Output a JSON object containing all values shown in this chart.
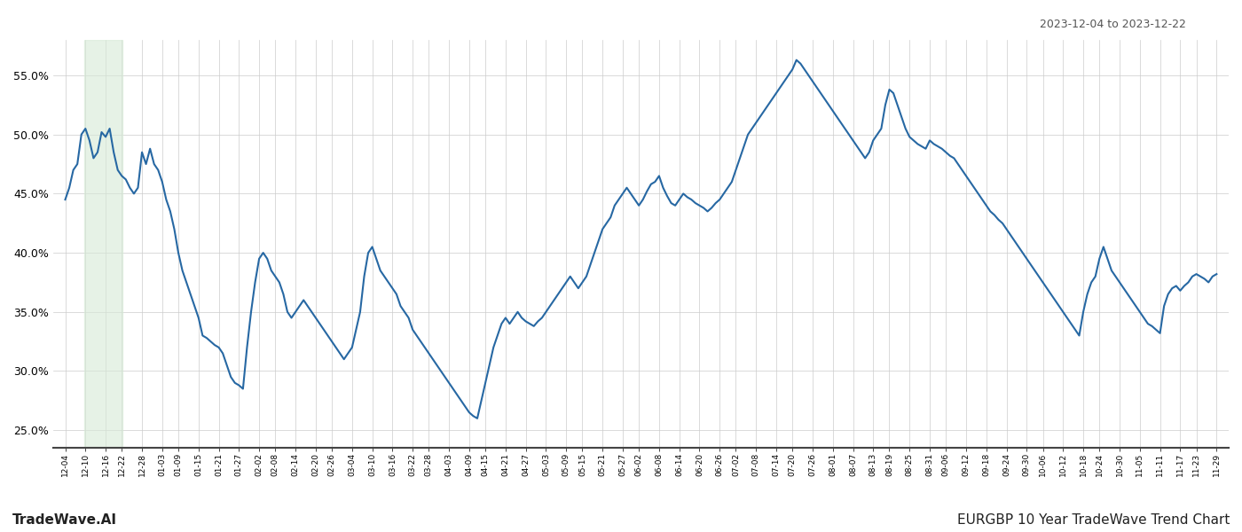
{
  "title_date_range": "2023-12-04 to 2023-12-22",
  "footer_left": "TradeWave.AI",
  "footer_right": "EURGBP 10 Year TradeWave Trend Chart",
  "line_color": "#2768a3",
  "line_width": 1.5,
  "background_color": "#ffffff",
  "grid_color": "#cccccc",
  "highlight_color": "#d6ead6",
  "highlight_alpha": 0.6,
  "ylim": [
    23.5,
    58.0
  ],
  "yticks": [
    25.0,
    30.0,
    35.0,
    40.0,
    45.0,
    50.0,
    55.0
  ],
  "x_labels": [
    "12-04",
    "12-10",
    "12-16",
    "12-22",
    "12-28",
    "01-03",
    "01-09",
    "01-15",
    "01-21",
    "01-27",
    "02-02",
    "02-08",
    "02-14",
    "02-20",
    "02-26",
    "03-04",
    "03-10",
    "03-16",
    "03-22",
    "03-28",
    "04-03",
    "04-09",
    "04-15",
    "04-21",
    "04-27",
    "05-03",
    "05-09",
    "05-15",
    "05-21",
    "05-27",
    "06-02",
    "06-08",
    "06-14",
    "06-20",
    "06-26",
    "07-02",
    "07-08",
    "07-14",
    "07-20",
    "07-26",
    "08-01",
    "08-07",
    "08-13",
    "08-19",
    "08-25",
    "08-31",
    "09-06",
    "09-12",
    "09-18",
    "09-24",
    "09-30",
    "10-06",
    "10-12",
    "10-18",
    "10-24",
    "10-30",
    "11-05",
    "11-11",
    "11-17",
    "11-23",
    "11-29"
  ],
  "highlight_label_start": "12-10",
  "highlight_label_end": "12-22",
  "values": [
    44.5,
    45.5,
    47.0,
    47.5,
    50.0,
    50.5,
    49.5,
    48.0,
    48.5,
    50.2,
    49.8,
    50.5,
    48.5,
    47.0,
    46.5,
    46.2,
    45.5,
    45.0,
    45.5,
    48.5,
    47.5,
    48.8,
    47.5,
    47.0,
    46.0,
    44.5,
    43.5,
    42.0,
    40.0,
    38.5,
    37.5,
    36.5,
    35.5,
    34.5,
    33.0,
    32.8,
    32.5,
    32.2,
    32.0,
    31.5,
    30.5,
    29.5,
    29.0,
    28.8,
    28.5,
    32.0,
    35.0,
    37.5,
    39.5,
    40.0,
    39.5,
    38.5,
    38.0,
    37.5,
    36.5,
    35.0,
    34.5,
    35.0,
    35.5,
    36.0,
    35.5,
    35.0,
    34.5,
    34.0,
    33.5,
    33.0,
    32.5,
    32.0,
    31.5,
    31.0,
    31.5,
    32.0,
    33.5,
    35.0,
    38.0,
    40.0,
    40.5,
    39.5,
    38.5,
    38.0,
    37.5,
    37.0,
    36.5,
    35.5,
    35.0,
    34.5,
    33.5,
    33.0,
    32.5,
    32.0,
    31.5,
    31.0,
    30.5,
    30.0,
    29.5,
    29.0,
    28.5,
    28.0,
    27.5,
    27.0,
    26.5,
    26.2,
    26.0,
    27.5,
    29.0,
    30.5,
    32.0,
    33.0,
    34.0,
    34.5,
    34.0,
    34.5,
    35.0,
    34.5,
    34.2,
    34.0,
    33.8,
    34.2,
    34.5,
    35.0,
    35.5,
    36.0,
    36.5,
    37.0,
    37.5,
    38.0,
    37.5,
    37.0,
    37.5,
    38.0,
    39.0,
    40.0,
    41.0,
    42.0,
    42.5,
    43.0,
    44.0,
    44.5,
    45.0,
    45.5,
    45.0,
    44.5,
    44.0,
    44.5,
    45.2,
    45.8,
    46.0,
    46.5,
    45.5,
    44.8,
    44.2,
    44.0,
    44.5,
    45.0,
    44.7,
    44.5,
    44.2,
    44.0,
    43.8,
    43.5,
    43.8,
    44.2,
    44.5,
    45.0,
    45.5,
    46.0,
    47.0,
    48.0,
    49.0,
    50.0,
    50.5,
    51.0,
    51.5,
    52.0,
    52.5,
    53.0,
    53.5,
    54.0,
    54.5,
    55.0,
    55.5,
    56.3,
    56.0,
    55.5,
    55.0,
    54.5,
    54.0,
    53.5,
    53.0,
    52.5,
    52.0,
    51.5,
    51.0,
    50.5,
    50.0,
    49.5,
    49.0,
    48.5,
    48.0,
    48.5,
    49.5,
    50.0,
    50.5,
    52.5,
    53.8,
    53.5,
    52.5,
    51.5,
    50.5,
    49.8,
    49.5,
    49.2,
    49.0,
    48.8,
    49.5,
    49.2,
    49.0,
    48.8,
    48.5,
    48.2,
    48.0,
    47.5,
    47.0,
    46.5,
    46.0,
    45.5,
    45.0,
    44.5,
    44.0,
    43.5,
    43.2,
    42.8,
    42.5,
    42.0,
    41.5,
    41.0,
    40.5,
    40.0,
    39.5,
    39.0,
    38.5,
    38.0,
    37.5,
    37.0,
    36.5,
    36.0,
    35.5,
    35.0,
    34.5,
    34.0,
    33.5,
    33.0,
    35.0,
    36.5,
    37.5,
    38.0,
    39.5,
    40.5,
    39.5,
    38.5,
    38.0,
    37.5,
    37.0,
    36.5,
    36.0,
    35.5,
    35.0,
    34.5,
    34.0,
    33.8,
    33.5,
    33.2,
    35.5,
    36.5,
    37.0,
    37.2,
    36.8,
    37.2,
    37.5,
    38.0,
    38.2,
    38.0,
    37.8,
    37.5,
    38.0,
    38.2
  ]
}
